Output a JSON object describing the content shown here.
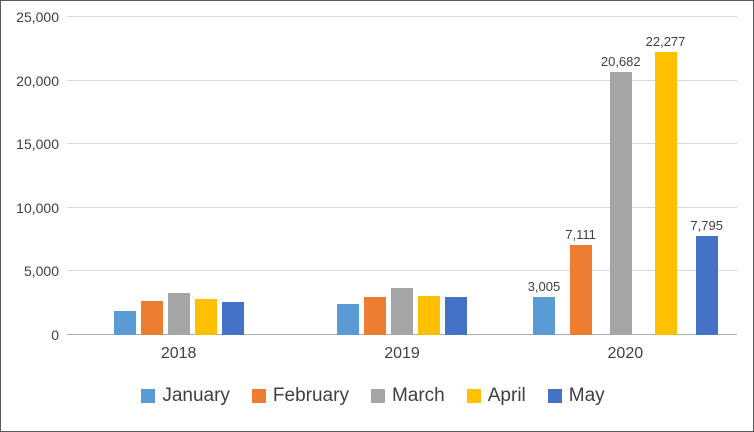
{
  "chart_data": {
    "type": "bar",
    "title": "",
    "xlabel": "",
    "ylabel": "",
    "categories": [
      "2018",
      "2019",
      "2020"
    ],
    "series": [
      {
        "name": "January",
        "color": "#5B9BD5",
        "values": [
          1900,
          2400,
          3005
        ],
        "labels": [
          "",
          "",
          "3,005"
        ]
      },
      {
        "name": "February",
        "color": "#ED7D31",
        "values": [
          2700,
          2950,
          7111
        ],
        "labels": [
          "",
          "",
          "7,111"
        ]
      },
      {
        "name": "March",
        "color": "#A5A5A5",
        "values": [
          3300,
          3700,
          20682
        ],
        "labels": [
          "",
          "",
          "20,682"
        ]
      },
      {
        "name": "April",
        "color": "#FFC000",
        "values": [
          2800,
          3050,
          22277
        ],
        "labels": [
          "",
          "",
          "22,277"
        ]
      },
      {
        "name": "May",
        "color": "#4472C4",
        "values": [
          2600,
          2950,
          7795
        ],
        "labels": [
          "",
          "",
          "7,795"
        ]
      }
    ],
    "ylim": [
      0,
      25000
    ],
    "yticks": [
      {
        "value": 0,
        "label": "0"
      },
      {
        "value": 5000,
        "label": "5,000"
      },
      {
        "value": 10000,
        "label": "10,000"
      },
      {
        "value": 15000,
        "label": "15,000"
      },
      {
        "value": 20000,
        "label": "20,000"
      },
      {
        "value": 25000,
        "label": "25,000"
      }
    ],
    "grid": true,
    "legend_position": "bottom",
    "colors": {
      "gridline": "#D9D9D9",
      "axis_line": "#ADADAD",
      "text": "#404040",
      "border": "#595959",
      "background": "#FFFFFF"
    }
  }
}
